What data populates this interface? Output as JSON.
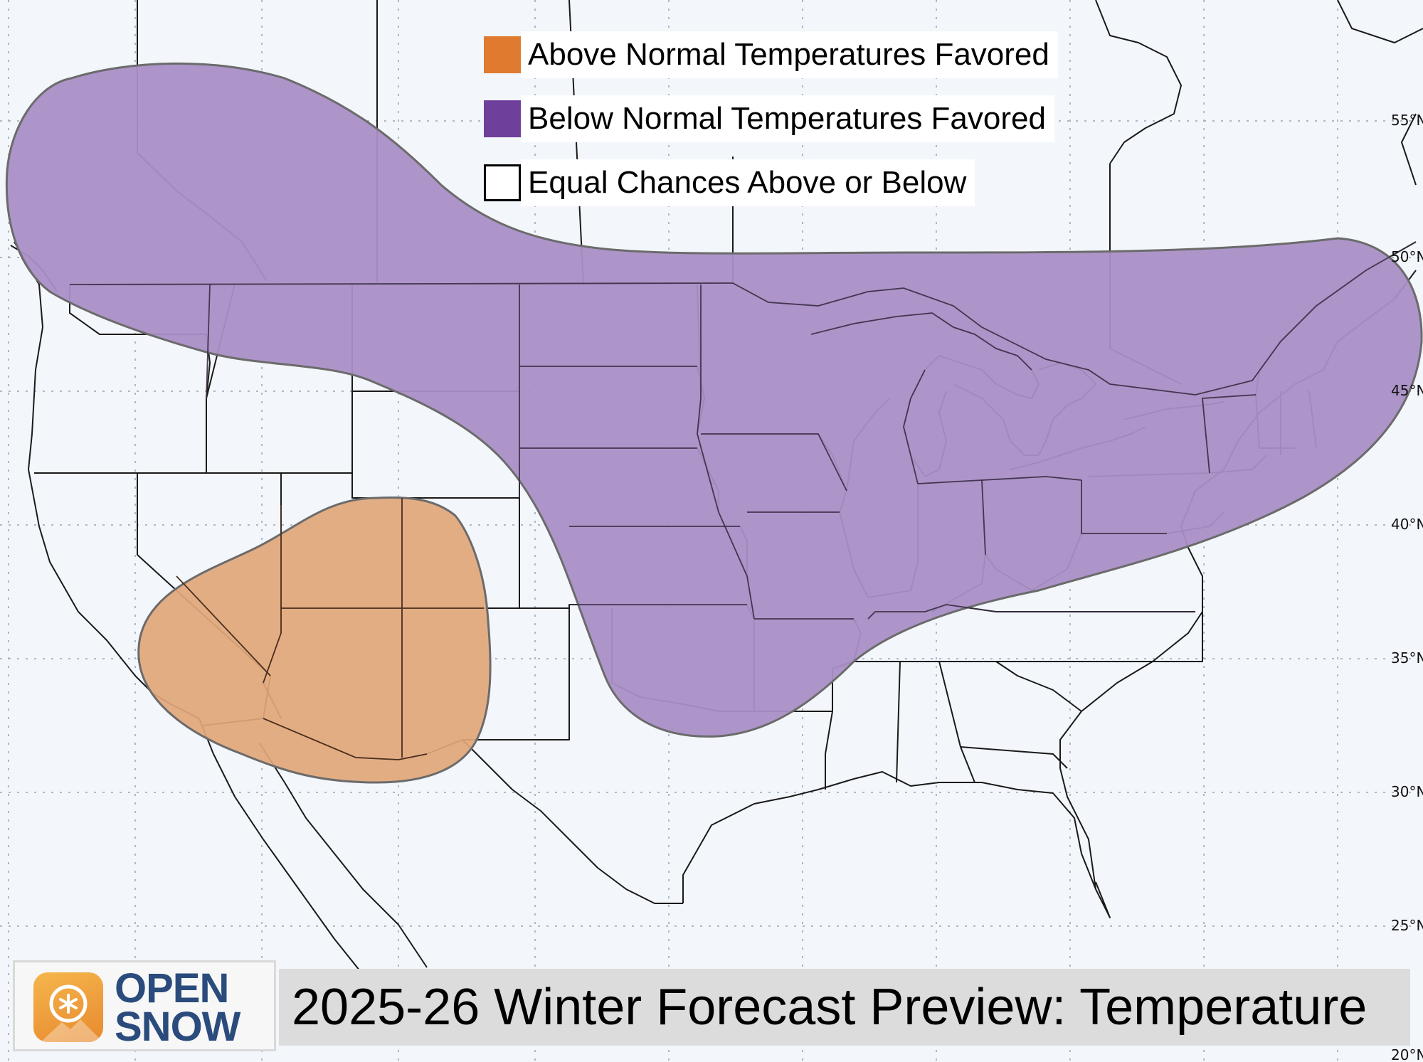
{
  "map": {
    "region": "Contiguous United States",
    "colors": {
      "above": "#e07a2f",
      "below": "#6f3f9c",
      "above_fill": "#e2a67a",
      "below_fill": "#a98fc6",
      "background": "#f3f6fb"
    },
    "latitude_labels": [
      "55°N",
      "50°N",
      "45°N",
      "40°N",
      "35°N",
      "30°N",
      "25°N",
      "20°N"
    ]
  },
  "legend": {
    "items": [
      {
        "label": "Above Normal Temperatures Favored",
        "color": "#e07a2f"
      },
      {
        "label": "Below Normal Temperatures Favored",
        "color": "#6f3f9c"
      },
      {
        "label": "Equal Chances Above or Below",
        "color": "#ffffff"
      }
    ]
  },
  "branding": {
    "logo_line1": "OPEN",
    "logo_line2": "SNOW",
    "icon": "opensnow-logo-icon"
  },
  "title": "2025-26 Winter Forecast Preview: Temperature"
}
